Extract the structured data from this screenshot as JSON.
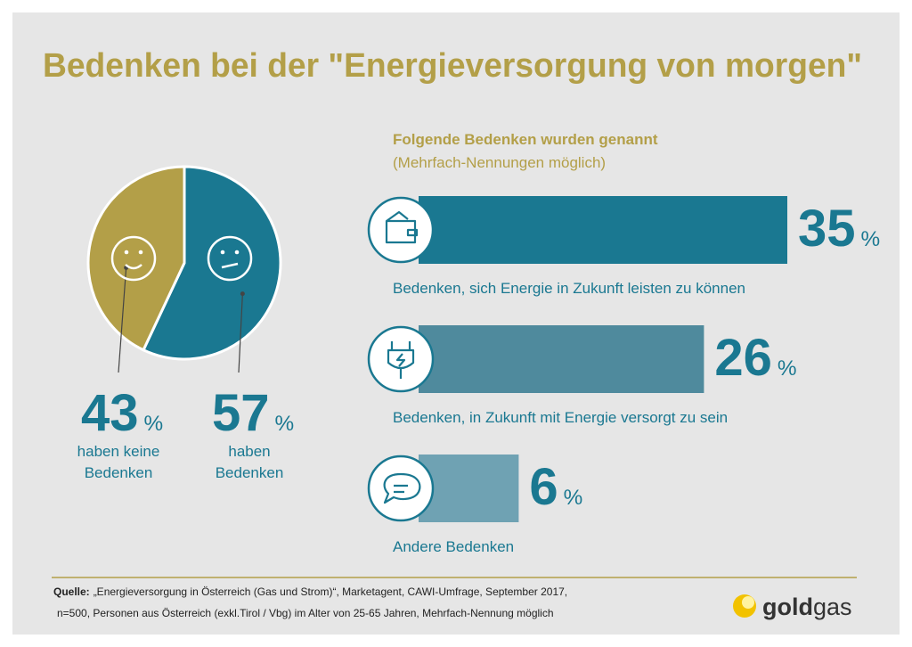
{
  "title": "Bedenken bei der \"Energieversorgung von morgen\"",
  "chart_data": [
    {
      "type": "pie",
      "categories": [
        "haben keine Bedenken",
        "haben Bedenken"
      ],
      "values": [
        43,
        57
      ],
      "unit": "%",
      "series_colors": [
        "#b39f48",
        "#1a7891"
      ]
    },
    {
      "type": "bar",
      "title": "Folgende Bedenken wurden genannt",
      "subtitle": "(Mehrfach-Nennungen möglich)",
      "categories": [
        "Bedenken, sich Energie in Zukunft leisten zu können",
        "Bedenken, in Zukunft mit Energie versorgt zu sein",
        "Andere Bedenken"
      ],
      "values": [
        35,
        26,
        6
      ],
      "unit": "%",
      "colors": [
        "#1a7891",
        "#4f8a9d",
        "#6fa2b3"
      ]
    }
  ],
  "source": {
    "label": "Quelle:",
    "lines": [
      "„Energieversorgung in Österreich (Gas und Strom)“, Marketagent, CAWI-Umfrage, September 2017,",
      "n=500, Personen aus Österreich (exkl.Tirol / Vbg) im Alter von 25-65 Jahren, Mehrfach-Nennung möglich"
    ]
  },
  "logo": [
    "gold",
    "gas"
  ]
}
